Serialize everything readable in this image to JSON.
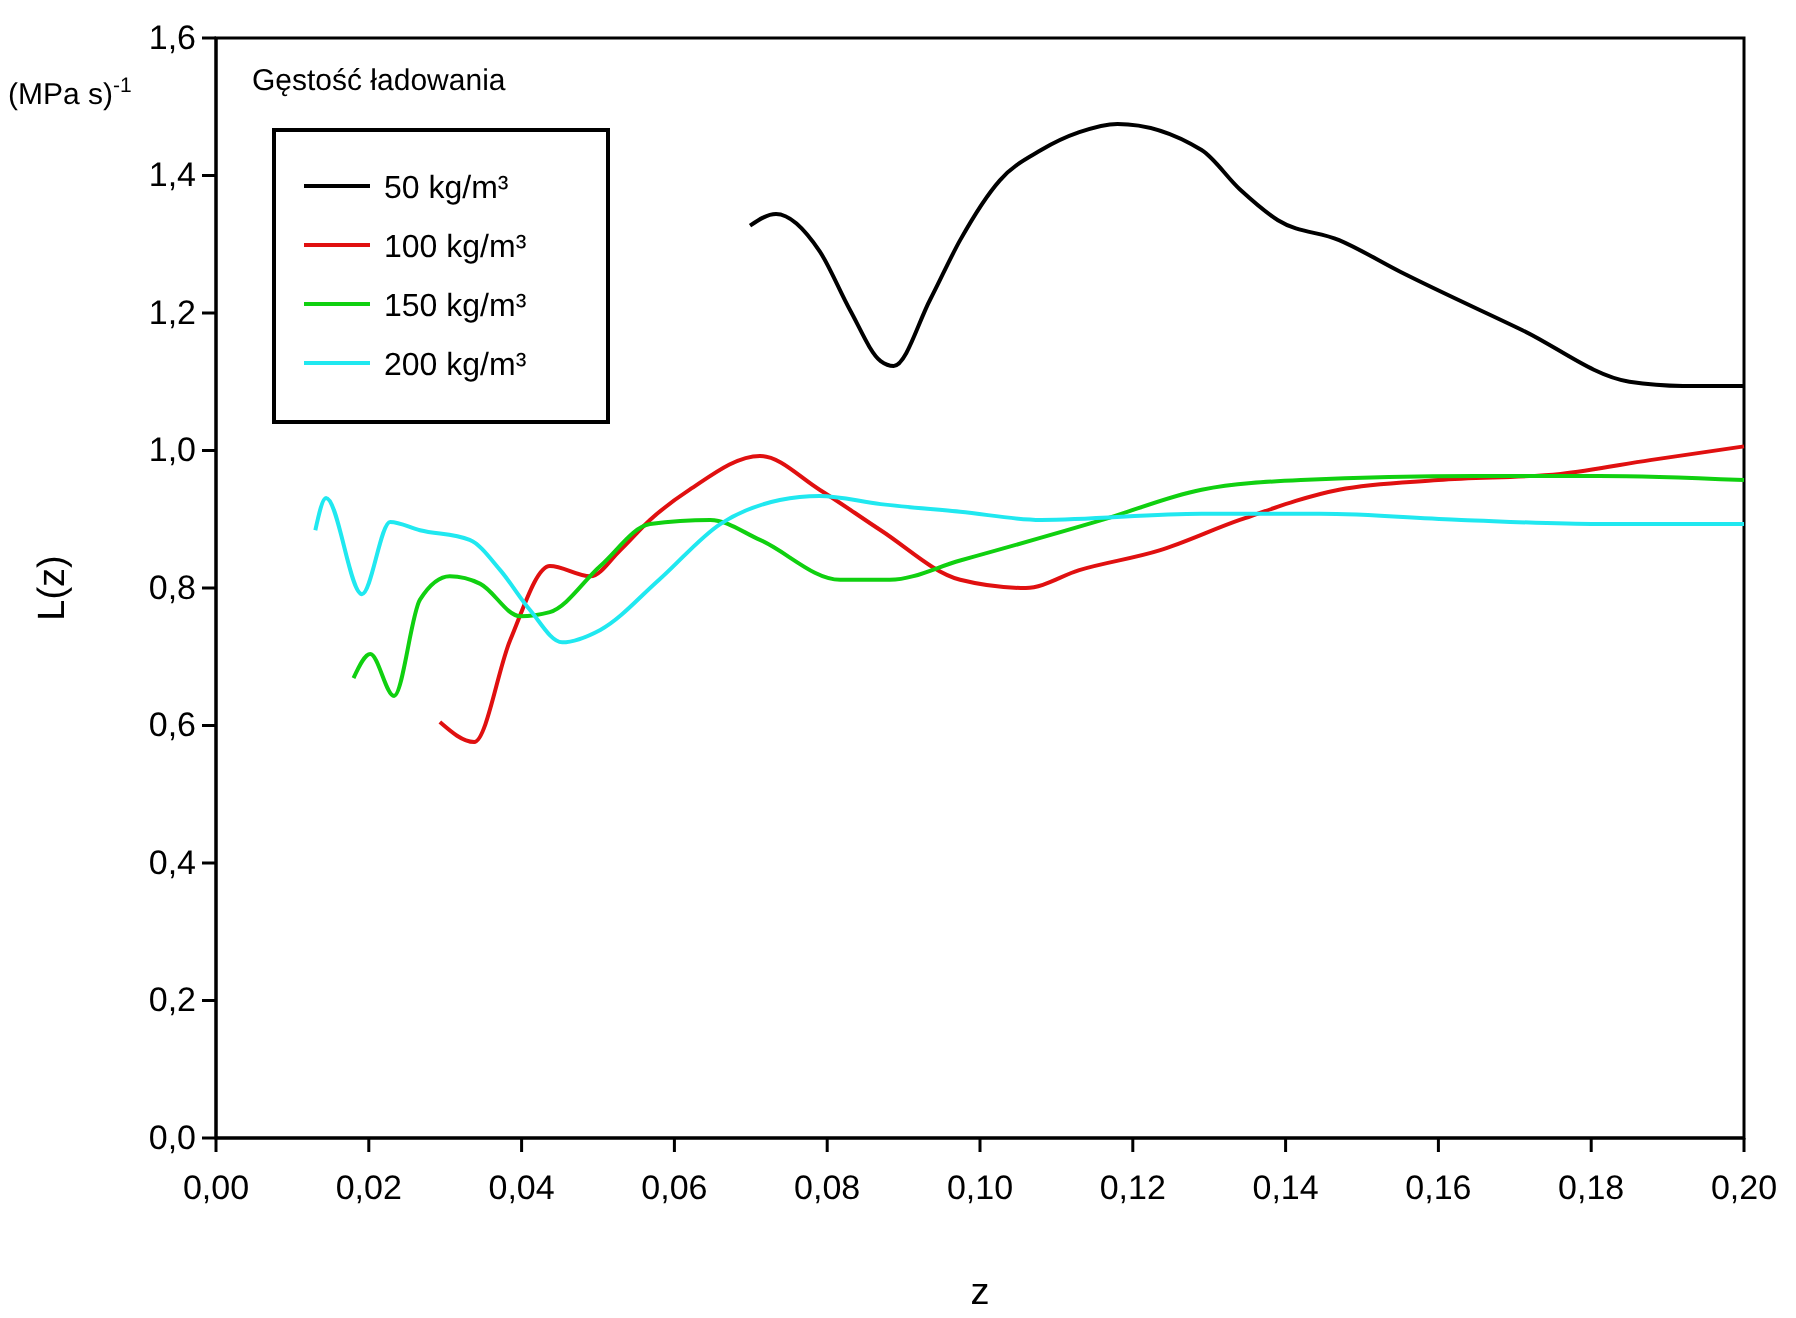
{
  "chart_data": {
    "type": "line",
    "xlabel": "z",
    "ylabel": "L(z)",
    "annotations": [
      "(MPa s)$^{-1}$"
    ],
    "legend_title": "Gęstość ładowania",
    "legend": "top left",
    "grid": false,
    "marker": "none",
    "line_style": "solid",
    "xlim": [
      0,
      0.2
    ],
    "ylim": [
      0,
      1.6
    ],
    "xticks": [
      {
        "value": 0,
        "label": "0,00"
      },
      {
        "value": 0.02,
        "label": "0,02"
      },
      {
        "value": 0.04,
        "label": "0,04"
      },
      {
        "value": 0.06,
        "label": "0,06"
      },
      {
        "value": 0.08,
        "label": "0,08"
      },
      {
        "value": 0.1,
        "label": "0,10"
      },
      {
        "value": 0.12,
        "label": "0,12"
      },
      {
        "value": 0.14,
        "label": "0,14"
      },
      {
        "value": 0.16,
        "label": "0,16"
      },
      {
        "value": 0.18,
        "label": "0,18"
      },
      {
        "value": 0.2,
        "label": "0,20"
      }
    ],
    "yticks": [
      {
        "value": 0,
        "label": "0,0"
      },
      {
        "value": 0.2,
        "label": "0,2"
      },
      {
        "value": 0.4,
        "label": "0,4"
      },
      {
        "value": 0.6,
        "label": "0,6"
      },
      {
        "value": 0.8,
        "label": "0,8"
      },
      {
        "value": 1,
        "label": "1,0"
      },
      {
        "value": 1.2,
        "label": "1,2"
      },
      {
        "value": 1.4,
        "label": "1,4"
      },
      {
        "value": 1.6,
        "label": "1,6"
      }
    ],
    "series": [
      {
        "name": "50 kg/m³",
        "color": "#000000",
        "x": [
          0.0699,
          0.0733,
          0.079,
          0.083,
          0.087,
          0.0887,
          0.0935,
          0.0974,
          0.1026,
          0.108,
          0.113,
          0.118,
          0.129,
          0.134,
          0.139,
          0.147,
          0.155,
          0.171,
          0.185,
          0.192,
          0.2
        ],
        "values": [
          1.327,
          1.344,
          1.29,
          1.204,
          1.13,
          1.123,
          1.22,
          1.306,
          1.393,
          1.437,
          1.463,
          1.475,
          1.437,
          1.38,
          1.335,
          1.306,
          1.26,
          1.175,
          1.1,
          1.094,
          1.094
        ]
      },
      {
        "name": "100 kg/m³",
        "color": "#e01010",
        "x": [
          0.0293,
          0.0338,
          0.0385,
          0.0437,
          0.049,
          0.0529,
          0.0568,
          0.062,
          0.0712,
          0.079,
          0.087,
          0.0974,
          0.106,
          0.113,
          0.1236,
          0.134,
          0.147,
          0.16,
          0.176,
          0.1877,
          0.2
        ],
        "values": [
          0.605,
          0.576,
          0.724,
          0.832,
          0.817,
          0.855,
          0.899,
          0.943,
          0.992,
          0.943,
          0.884,
          0.812,
          0.8,
          0.826,
          0.855,
          0.899,
          0.943,
          0.957,
          0.966,
          0.986,
          1.006
        ]
      },
      {
        "name": "150 kg/m³",
        "color": "#10d010",
        "x": [
          0.018,
          0.0202,
          0.0233,
          0.0267,
          0.0306,
          0.0346,
          0.0398,
          0.0437,
          0.0503,
          0.0568,
          0.0647,
          0.0712,
          0.0817,
          0.0882,
          0.0974,
          0.116,
          0.129,
          0.142,
          0.165,
          0.181,
          0.2
        ],
        "values": [
          0.669,
          0.704,
          0.643,
          0.783,
          0.817,
          0.806,
          0.759,
          0.765,
          0.832,
          0.893,
          0.899,
          0.87,
          0.812,
          0.812,
          0.84,
          0.899,
          0.943,
          0.957,
          0.963,
          0.963,
          0.957
        ]
      },
      {
        "name": "200 kg/m³",
        "color": "#20e8f0",
        "x": [
          0.013,
          0.0144,
          0.0191,
          0.0228,
          0.0267,
          0.0332,
          0.0372,
          0.0411,
          0.0453,
          0.0503,
          0.058,
          0.066,
          0.0738,
          0.079,
          0.087,
          0.0974,
          0.108,
          0.129,
          0.1445,
          0.163,
          0.181,
          0.2
        ],
        "values": [
          0.884,
          0.931,
          0.791,
          0.896,
          0.884,
          0.87,
          0.826,
          0.768,
          0.721,
          0.739,
          0.812,
          0.893,
          0.928,
          0.934,
          0.922,
          0.911,
          0.899,
          0.908,
          0.908,
          0.899,
          0.893,
          0.893
        ]
      }
    ]
  }
}
